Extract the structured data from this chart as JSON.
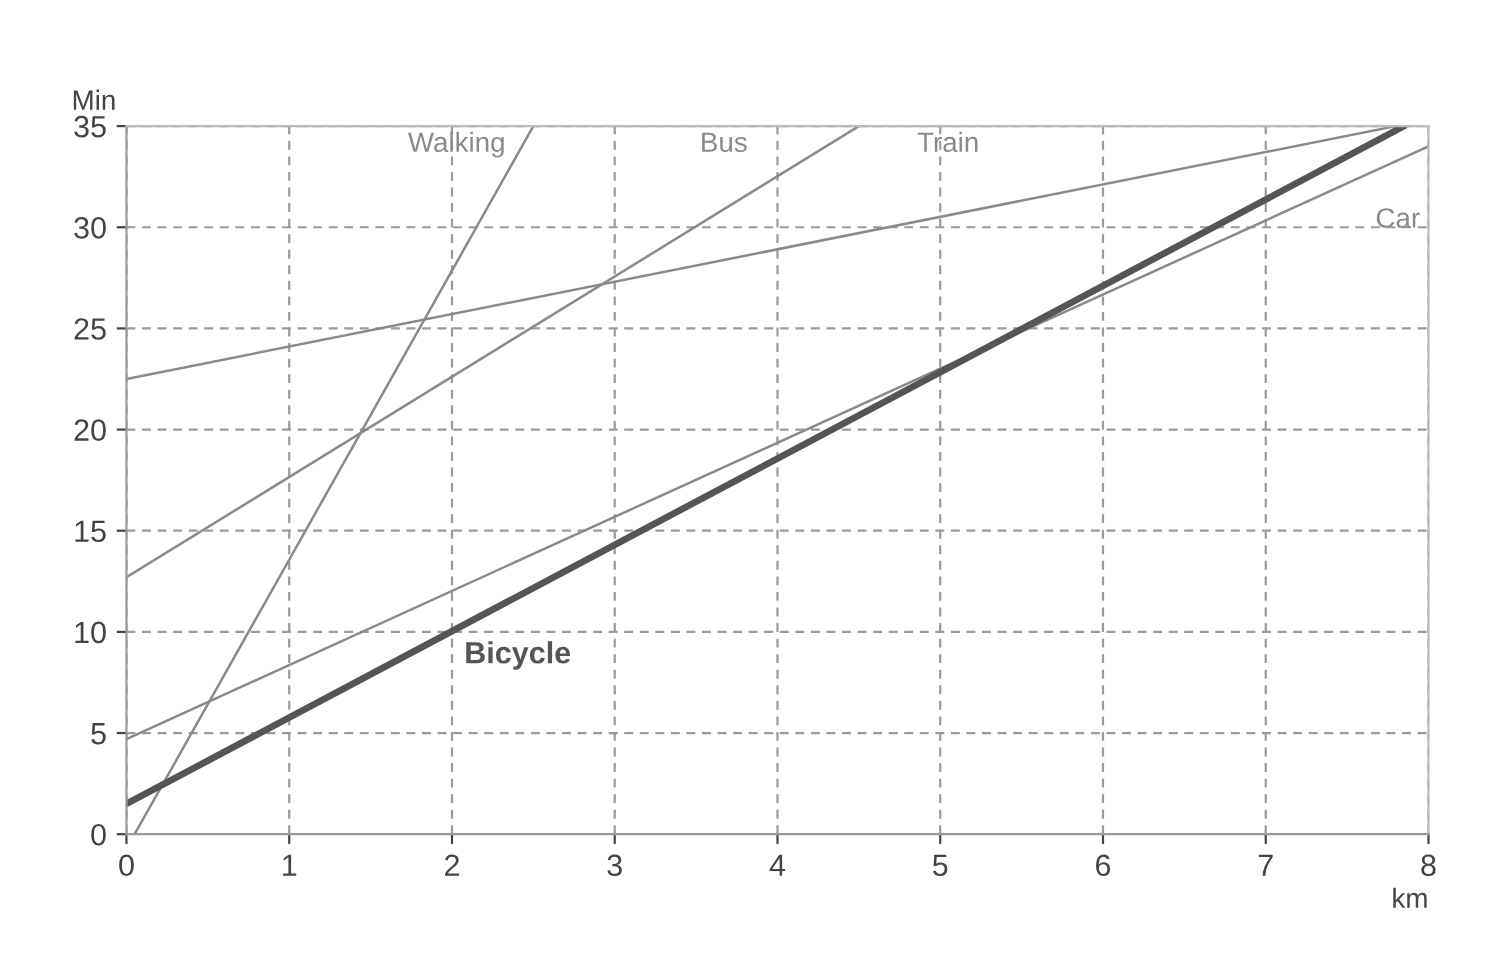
{
  "chart_data": {
    "type": "line",
    "xlabel": "km",
    "ylabel": "Min",
    "xlim": [
      0,
      8
    ],
    "ylim": [
      0,
      35
    ],
    "xticks": [
      0,
      1,
      2,
      3,
      4,
      5,
      6,
      7,
      8
    ],
    "yticks": [
      0,
      5,
      10,
      15,
      20,
      25,
      30,
      35
    ],
    "grid": true,
    "line_style": "solid",
    "marker": "none",
    "series": [
      {
        "name": "Walking",
        "color": "#8a8a8a",
        "x": [
          0.05,
          2.5
        ],
        "values": [
          0,
          35
        ]
      },
      {
        "name": "Bus",
        "color": "#8a8a8a",
        "x": [
          0,
          4.5
        ],
        "values": [
          12.7,
          35
        ]
      },
      {
        "name": "Train",
        "color": "#8a8a8a",
        "x": [
          0,
          7.8
        ],
        "values": [
          22.5,
          35
        ]
      },
      {
        "name": "Car",
        "color": "#8a8a8a",
        "x": [
          0,
          8
        ],
        "values": [
          4.7,
          34
        ]
      },
      {
        "name": "Bicycle",
        "color": "#555555",
        "x": [
          0,
          7.85
        ],
        "values": [
          1.5,
          35
        ]
      }
    ]
  }
}
